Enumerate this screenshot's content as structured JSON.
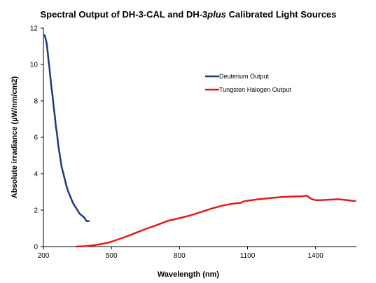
{
  "chart_data": {
    "type": "line",
    "title_prefix": "Spectral Output of DH-3-CAL and DH-3",
    "title_italic": "plus",
    "title_suffix": " Calibrated Light Sources",
    "xlabel": "Wavelength (nm)",
    "ylabel": "Absolute irradiance (µW/nm/cm2)",
    "xlim": [
      200,
      1580
    ],
    "ylim": [
      0,
      12
    ],
    "xticks": [
      200,
      500,
      800,
      1100,
      1400
    ],
    "yticks": [
      0,
      2,
      4,
      6,
      8,
      10,
      12
    ],
    "grid": false,
    "legend_position": "upper-right",
    "series": [
      {
        "name": "Deuterium Output",
        "color": "#1f3a78",
        "x": [
          203,
          206,
          210,
          214,
          218,
          222,
          226,
          230,
          235,
          240,
          245,
          250,
          255,
          260,
          265,
          270,
          275,
          280,
          290,
          300,
          310,
          320,
          330,
          340,
          350,
          355,
          360,
          365,
          370,
          375,
          380,
          385,
          390,
          395,
          400
        ],
        "y": [
          11.6,
          11.6,
          11.4,
          11.2,
          10.8,
          10.3,
          9.9,
          9.4,
          8.8,
          8.3,
          7.7,
          7.2,
          6.6,
          6.2,
          5.6,
          5.2,
          4.8,
          4.4,
          3.9,
          3.4,
          3.0,
          2.7,
          2.4,
          2.2,
          2.0,
          1.9,
          1.8,
          1.75,
          1.7,
          1.65,
          1.6,
          1.5,
          1.4,
          1.4,
          1.4
        ]
      },
      {
        "name": "Tungsten Halogen Output",
        "color": "#e8191c",
        "x": [
          345,
          360,
          380,
          400,
          420,
          450,
          480,
          500,
          550,
          600,
          650,
          700,
          750,
          800,
          850,
          900,
          950,
          1000,
          1050,
          1070,
          1080,
          1100,
          1150,
          1200,
          1250,
          1300,
          1340,
          1360,
          1370,
          1380,
          1390,
          1400,
          1420,
          1450,
          1500,
          1540,
          1560,
          1575
        ],
        "y": [
          0.0,
          0.01,
          0.02,
          0.04,
          0.07,
          0.13,
          0.2,
          0.27,
          0.48,
          0.72,
          0.96,
          1.18,
          1.42,
          1.56,
          1.72,
          1.92,
          2.12,
          2.28,
          2.38,
          2.4,
          2.47,
          2.52,
          2.6,
          2.66,
          2.72,
          2.75,
          2.76,
          2.8,
          2.72,
          2.63,
          2.58,
          2.55,
          2.55,
          2.57,
          2.6,
          2.55,
          2.52,
          2.5
        ]
      }
    ]
  }
}
